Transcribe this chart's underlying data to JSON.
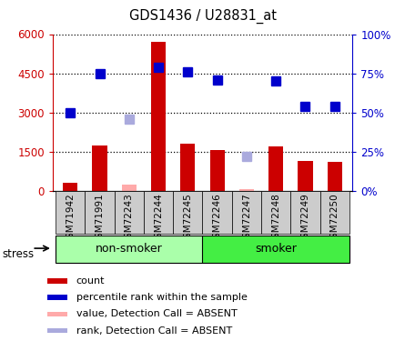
{
  "title": "GDS1436 / U28831_at",
  "samples": [
    "GSM71942",
    "GSM71991",
    "GSM72243",
    "GSM72244",
    "GSM72245",
    "GSM72246",
    "GSM72247",
    "GSM72248",
    "GSM72249",
    "GSM72250"
  ],
  "count_values": [
    300,
    1750,
    null,
    5700,
    1800,
    1550,
    null,
    1700,
    1150,
    1100
  ],
  "count_absent": [
    null,
    null,
    230,
    null,
    null,
    null,
    65,
    null,
    null,
    null
  ],
  "rank_values_pct": [
    50,
    75,
    null,
    79,
    76,
    71,
    null,
    70,
    54,
    54
  ],
  "rank_absent_pct": [
    null,
    null,
    46,
    null,
    null,
    null,
    22,
    null,
    null,
    null
  ],
  "left_ylim": [
    0,
    6000
  ],
  "right_ylim": [
    0,
    100
  ],
  "left_yticks": [
    0,
    1500,
    3000,
    4500,
    6000
  ],
  "left_yticklabels": [
    "0",
    "1500",
    "3000",
    "4500",
    "6000"
  ],
  "right_yticks": [
    0,
    25,
    50,
    75,
    100
  ],
  "right_yticklabels": [
    "0%",
    "25%",
    "50%",
    "75%",
    "100%"
  ],
  "bar_color": "#cc0000",
  "bar_absent_color": "#ffaaaa",
  "rank_color": "#0000cc",
  "rank_absent_color": "#aaaadd",
  "non_smoker_color": "#aaffaa",
  "smoker_color": "#44ee44",
  "left_axis_color": "#cc0000",
  "right_axis_color": "#0000cc",
  "bar_width": 0.5,
  "marker_size": 7,
  "xtick_bg_color": "#cccccc",
  "plot_bg_color": "#ffffff",
  "stress_label": "stress",
  "non_smoker_label": "non-smoker",
  "smoker_label": "smoker"
}
